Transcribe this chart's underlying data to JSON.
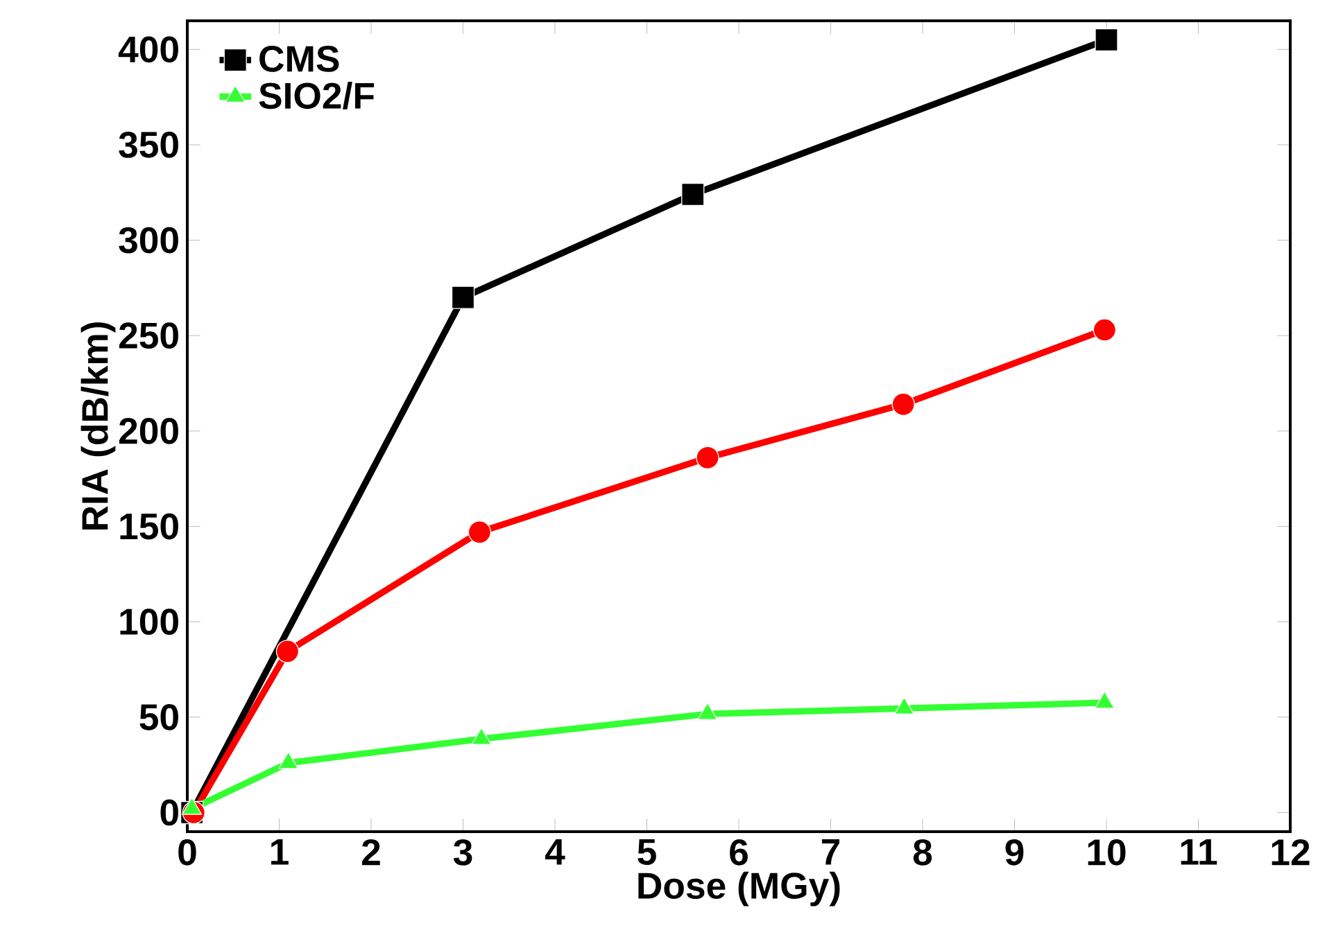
{
  "chart_data": {
    "type": "line",
    "xlabel": "Dose (MGy)",
    "ylabel": "RIA (dB/km)",
    "xlim": [
      0,
      12
    ],
    "ylim": [
      -10,
      415
    ],
    "xticks": [
      0,
      1,
      2,
      3,
      4,
      5,
      6,
      7,
      8,
      9,
      10,
      11,
      12
    ],
    "yticks": [
      0,
      50,
      100,
      150,
      200,
      250,
      300,
      350,
      400
    ],
    "legend": "top left",
    "series": [
      {
        "name": "CMS",
        "color": "#000000",
        "marker": "square",
        "x": [
          0.05,
          3,
          5.5,
          10
        ],
        "values": [
          0,
          270,
          324,
          405
        ]
      },
      {
        "color": "#ff0000",
        "marker": "circle",
        "x": [
          0.07,
          1.09,
          3.18,
          5.66,
          7.79,
          9.98
        ],
        "values": [
          0,
          84.5,
          147,
          186,
          214,
          253
        ]
      },
      {
        "name": "SIO2/F",
        "color": "#33ff33",
        "marker": "triangle",
        "x": [
          0.05,
          1.1,
          3.2,
          5.66,
          7.8,
          9.98
        ],
        "values": [
          2,
          26,
          38.6,
          51.7,
          54.6,
          57.6
        ]
      }
    ]
  }
}
